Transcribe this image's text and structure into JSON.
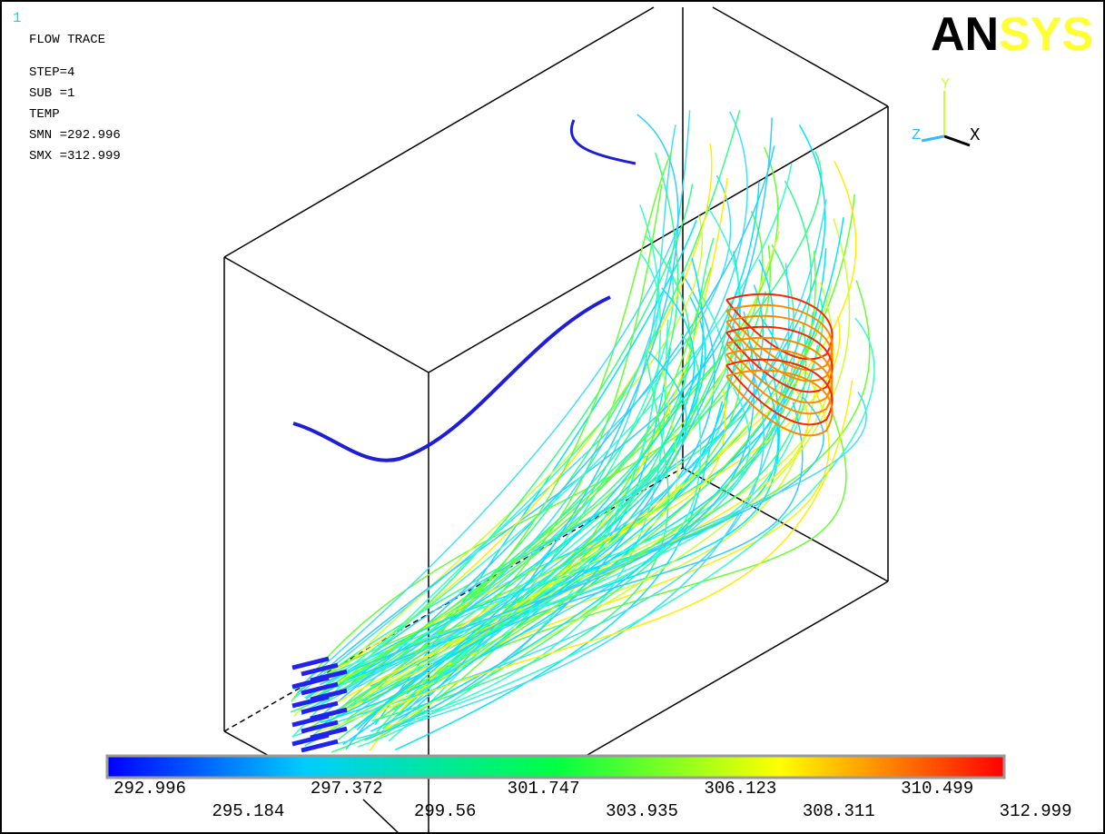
{
  "window_number": "1",
  "info": {
    "title": "FLOW TRACE",
    "lines": [
      "STEP=4",
      "SUB =1",
      "TEMP",
      "SMN =292.996",
      "SMX =312.999"
    ]
  },
  "logo": {
    "first": "AN",
    "second": "SYS"
  },
  "triad": {
    "y": "Y",
    "z": "Z",
    "x": "X"
  },
  "legend": {
    "labels": [
      "292.996",
      "295.184",
      "297.372",
      "299.56",
      "301.747",
      "303.935",
      "306.123",
      "308.311",
      "310.499",
      "312.999"
    ]
  }
}
